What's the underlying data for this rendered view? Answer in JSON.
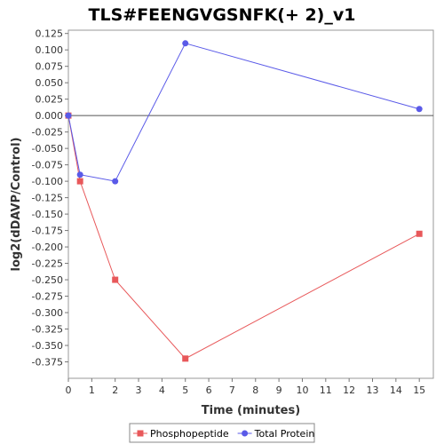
{
  "chart_data": {
    "type": "line",
    "title": "TLS#FEENGVGSNFK(+ 2)_v1",
    "xlabel": "Time (minutes)",
    "ylabel": "log2(dDAVP/Control)",
    "xlim": [
      0,
      15.6
    ],
    "ylim": [
      -0.4,
      0.13
    ],
    "x_ticks": [
      0,
      1,
      2,
      3,
      4,
      5,
      6,
      7,
      8,
      9,
      10,
      11,
      12,
      13,
      14,
      15
    ],
    "y_ticks": [
      0.125,
      0.1,
      0.075,
      0.05,
      0.025,
      0.0,
      -0.025,
      -0.05,
      -0.075,
      -0.1,
      -0.125,
      -0.15,
      -0.175,
      -0.2,
      -0.225,
      -0.25,
      -0.275,
      -0.3,
      -0.325,
      -0.35,
      -0.375
    ],
    "y_tick_labels": [
      "0.125",
      "0.100",
      "0.075",
      "0.050",
      "0.025",
      "0.000",
      "-0.025",
      "-0.050",
      "-0.075",
      "-0.100",
      "-0.125",
      "-0.150",
      "-0.175",
      "-0.200",
      "-0.225",
      "-0.250",
      "-0.275",
      "-0.300",
      "-0.325",
      "-0.350",
      "-0.375"
    ],
    "zero_line": true,
    "grid": false,
    "legend_position": "bottom",
    "series": [
      {
        "name": "Phosphopeptide",
        "color": "#e8585a",
        "marker": "square",
        "x": [
          0,
          0.5,
          2,
          5,
          15
        ],
        "y": [
          0.0,
          -0.1,
          -0.25,
          -0.37,
          -0.18
        ]
      },
      {
        "name": "Total Protein",
        "color": "#5a5ae8",
        "marker": "circle",
        "x": [
          0,
          0.5,
          2,
          5,
          15
        ],
        "y": [
          0.0,
          -0.09,
          -0.1,
          0.11,
          0.01
        ]
      }
    ]
  }
}
